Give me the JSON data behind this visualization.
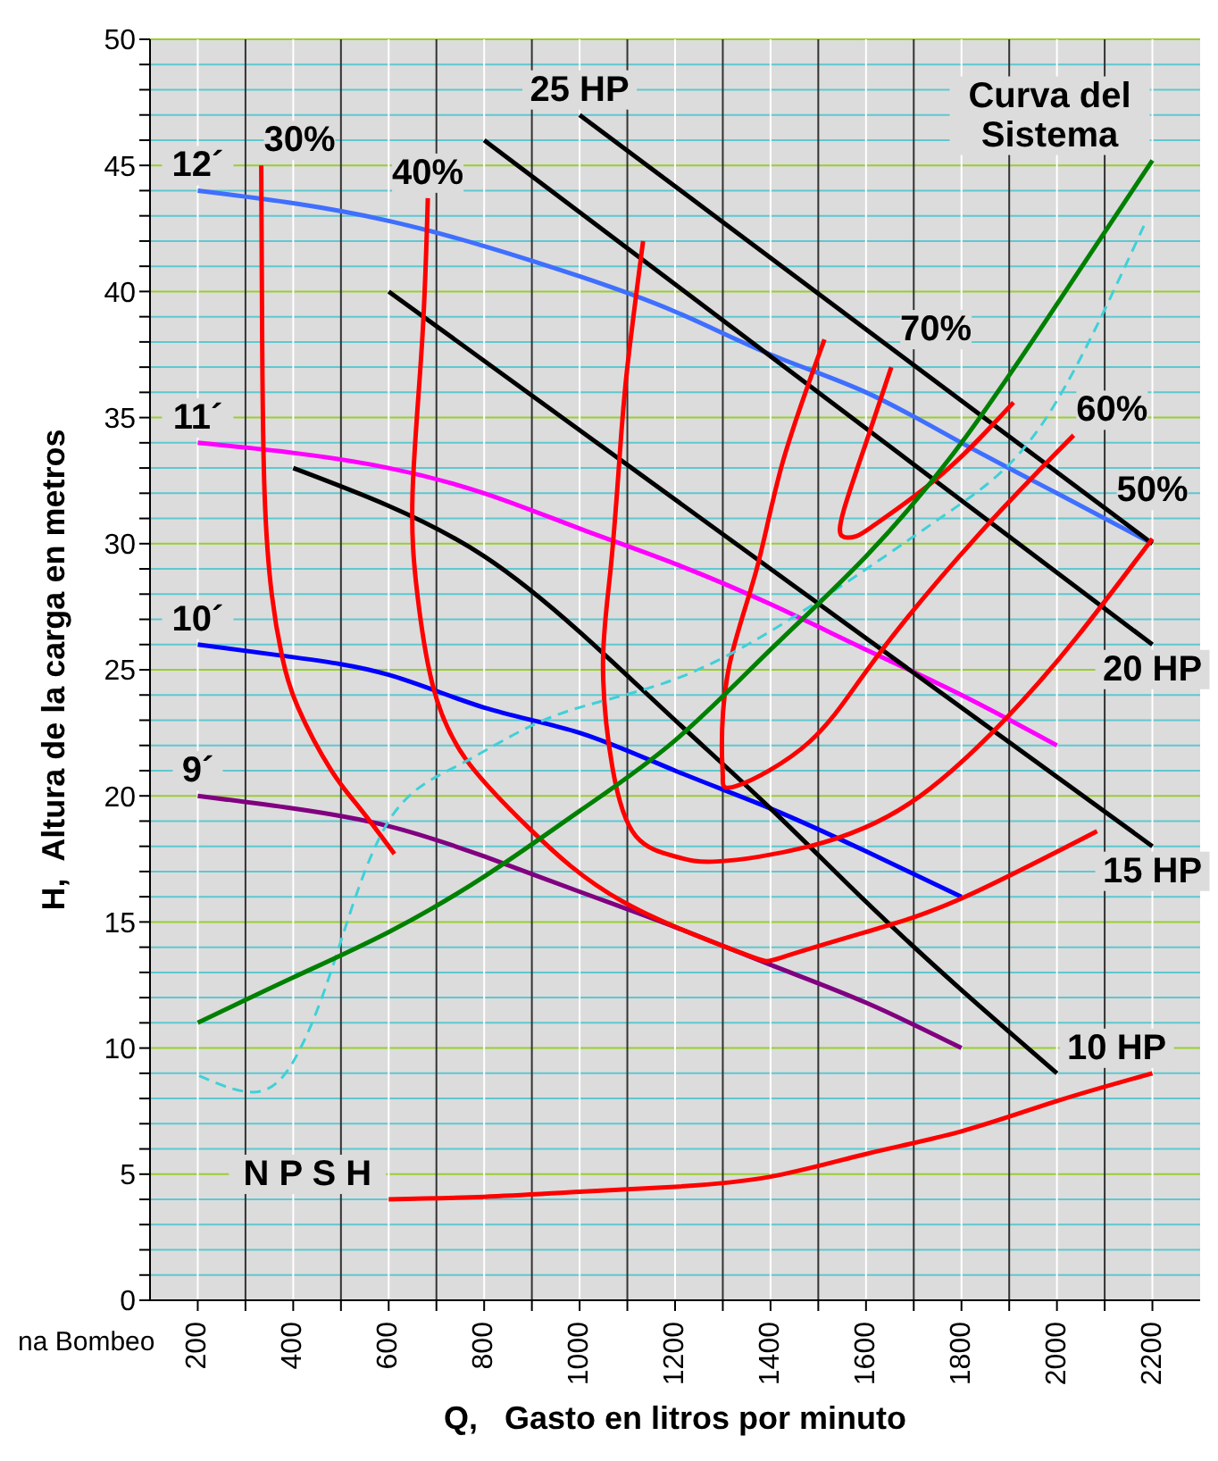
{
  "chart_data": {
    "type": "line",
    "xlabel": "Q,   Gasto en litros por minuto",
    "ylabel": "H,  Altura de la carga en metros",
    "xlim": [
      100,
      2300
    ],
    "ylim": [
      0,
      50
    ],
    "grid": true,
    "xticks": [
      200,
      {
        "value": 300,
        "label": null
      },
      400,
      {
        "value": 500,
        "label": null
      },
      600,
      {
        "value": 700,
        "label": null
      },
      800,
      {
        "value": 900,
        "label": null
      },
      1000,
      {
        "value": 1100,
        "label": null
      },
      1200,
      {
        "value": 1300,
        "label": null
      },
      1400,
      {
        "value": 1500,
        "label": null
      },
      1600,
      {
        "value": 1700,
        "label": null
      },
      1800,
      {
        "value": 1900,
        "label": null
      },
      2000,
      {
        "value": 2100,
        "label": null
      },
      2200
    ],
    "yticks": [
      0,
      {
        "value": 1,
        "label": null
      },
      {
        "value": 2,
        "label": null
      },
      {
        "value": 3,
        "label": null
      },
      {
        "value": 4,
        "label": null
      },
      5,
      {
        "value": 6,
        "label": null
      },
      {
        "value": 7,
        "label": null
      },
      {
        "value": 8,
        "label": null
      },
      {
        "value": 9,
        "label": null
      },
      10,
      {
        "value": 11,
        "label": null
      },
      {
        "value": 12,
        "label": null
      },
      {
        "value": 13,
        "label": null
      },
      {
        "value": 14,
        "label": null
      },
      15,
      {
        "value": 16,
        "label": null
      },
      {
        "value": 17,
        "label": null
      },
      {
        "value": 18,
        "label": null
      },
      {
        "value": 19,
        "label": null
      },
      20,
      {
        "value": 21,
        "label": null
      },
      {
        "value": 22,
        "label": null
      },
      {
        "value": 23,
        "label": null
      },
      {
        "value": 24,
        "label": null
      },
      25,
      {
        "value": 26,
        "label": null
      },
      {
        "value": 27,
        "label": null
      },
      {
        "value": 28,
        "label": null
      },
      {
        "value": 29,
        "label": null
      },
      30,
      {
        "value": 31,
        "label": null
      },
      {
        "value": 32,
        "label": null
      },
      {
        "value": 33,
        "label": null
      },
      {
        "value": 34,
        "label": null
      },
      35,
      {
        "value": 36,
        "label": null
      },
      {
        "value": 37,
        "label": null
      },
      {
        "value": 38,
        "label": null
      },
      {
        "value": 39,
        "label": null
      },
      40,
      {
        "value": 41,
        "label": null
      },
      {
        "value": 42,
        "label": null
      },
      {
        "value": 43,
        "label": null
      },
      {
        "value": 44,
        "label": null
      },
      45,
      {
        "value": 46,
        "label": null
      },
      {
        "value": 47,
        "label": null
      },
      {
        "value": 48,
        "label": null
      },
      {
        "value": 49,
        "label": null
      },
      50
    ],
    "series": [
      {
        "name": "12´",
        "color": "#3f6fff",
        "x": [
          200,
          400,
          600,
          800,
          1000,
          1200,
          1400,
          1600,
          1800,
          2000,
          2200
        ],
        "values": [
          44,
          43.5,
          42.8,
          41.8,
          40.6,
          39.2,
          37.5,
          36,
          34,
          32,
          30
        ]
      },
      {
        "name": "11´",
        "color": "#ff00ff",
        "x": [
          200,
          400,
          600,
          800,
          1000,
          1200,
          1400,
          1600,
          1800,
          2000
        ],
        "values": [
          34,
          33.6,
          33,
          32,
          30.6,
          29.2,
          27.6,
          25.8,
          24,
          22
        ]
      },
      {
        "name": "10´",
        "color": "#0000ff",
        "x": [
          200,
          400,
          600,
          800,
          1000,
          1200,
          1400,
          1600,
          1800
        ],
        "values": [
          26,
          25.5,
          24.8,
          23.5,
          22.5,
          21,
          19.5,
          17.8,
          16
        ]
      },
      {
        "name": "9´",
        "color": "#800080",
        "x": [
          200,
          400,
          600,
          800,
          1000,
          1200,
          1400,
          1600,
          1800
        ],
        "values": [
          20,
          19.5,
          18.8,
          17.6,
          16.2,
          14.8,
          13.3,
          11.8,
          10
        ]
      },
      {
        "name": "25 HP",
        "color": "#000000",
        "x": [
          2200,
          1000
        ],
        "values": [
          30,
          47
        ]
      },
      {
        "name": "20 HP",
        "color": "#000000",
        "x": [
          2200,
          800
        ],
        "values": [
          26,
          46
        ]
      },
      {
        "name": "15 HP",
        "color": "#000000",
        "x": [
          2200,
          600
        ],
        "values": [
          18,
          40
        ]
      },
      {
        "name": "10 HP",
        "color": "#000000",
        "x": [
          2000,
          1800,
          1600,
          1400,
          1200,
          1000,
          800,
          600,
          400
        ],
        "values": [
          9,
          12.3,
          15.8,
          19.5,
          23,
          26.5,
          29.5,
          31.5,
          33
        ]
      },
      {
        "name": "30%",
        "color": "#ff0000",
        "x": [
          333,
          335,
          340,
          355,
          377,
          410,
          480,
          540,
          612
        ],
        "values": [
          45,
          38,
          32,
          28,
          25.5,
          23.5,
          21,
          19.5,
          17.7
        ]
      },
      {
        "name": "40%",
        "color": "#ff0000",
        "x": [
          682,
          670,
          650,
          660,
          692,
          760,
          895,
          1091,
          1342,
          1425,
          1600,
          1796,
          2084
        ],
        "values": [
          43.7,
          38,
          32,
          28,
          24.4,
          21.5,
          18.7,
          15.8,
          13.75,
          13.6,
          14.6,
          15.9,
          18.6
        ]
      },
      {
        "name": "50%",
        "color": "#ff0000",
        "x": [
          1133,
          1100,
          1084,
          1065,
          1049,
          1069,
          1118,
          1200,
          1288,
          1482,
          1691,
          1887,
          2042,
          2200
        ],
        "values": [
          42,
          37,
          33.5,
          29,
          25.2,
          21.1,
          18.4,
          17.6,
          17.4,
          18,
          19.7,
          22.95,
          26.3,
          30.2
        ]
      },
      {
        "name": "60%",
        "color": "#ff0000",
        "x": [
          1513,
          1425,
          1371,
          1314,
          1298,
          1300,
          1330,
          1482,
          1622,
          1833,
          2035
        ],
        "values": [
          38.1,
          33.2,
          29,
          25.2,
          22,
          20.7,
          20.4,
          22.15,
          25.5,
          30.3,
          34.3
        ]
      },
      {
        "name": "70%",
        "color": "#ff0000",
        "x": [
          1653,
          1600,
          1553,
          1550,
          1580,
          1622,
          1762,
          1909
        ],
        "values": [
          37,
          34,
          31.3,
          30.3,
          30.3,
          30.8,
          32.8,
          35.6
        ]
      },
      {
        "color": "#40d0d8",
        "line_style": "dashed",
        "x": [
          203,
          335,
          418,
          489,
          600,
          755,
          951,
          1203,
          1482,
          1762,
          1971,
          2182
        ],
        "values": [
          8.9,
          8.3,
          10.1,
          13.6,
          19,
          21.3,
          23.2,
          24.65,
          27.5,
          31.1,
          34.8,
          42.6
        ]
      },
      {
        "name": "Curva del Sistema",
        "color": "#008000",
        "x": [
          2200,
          2000,
          1800,
          1600,
          1400,
          1200,
          1000,
          800,
          600,
          400,
          200
        ],
        "values": [
          45.2,
          39.5,
          34,
          29.5,
          25.8,
          22.2,
          19.4,
          16.8,
          14.6,
          12.8,
          11
        ]
      },
      {
        "name": "N P S H",
        "color": "#ff0000",
        "x": [
          600,
          800,
          1000,
          1200,
          1400,
          1600,
          1800,
          2000,
          2200
        ],
        "values": [
          4,
          4.1,
          4.3,
          4.5,
          4.9,
          5.8,
          6.7,
          7.9,
          9
        ]
      }
    ],
    "annotations": [
      "na Bombeo"
    ]
  }
}
